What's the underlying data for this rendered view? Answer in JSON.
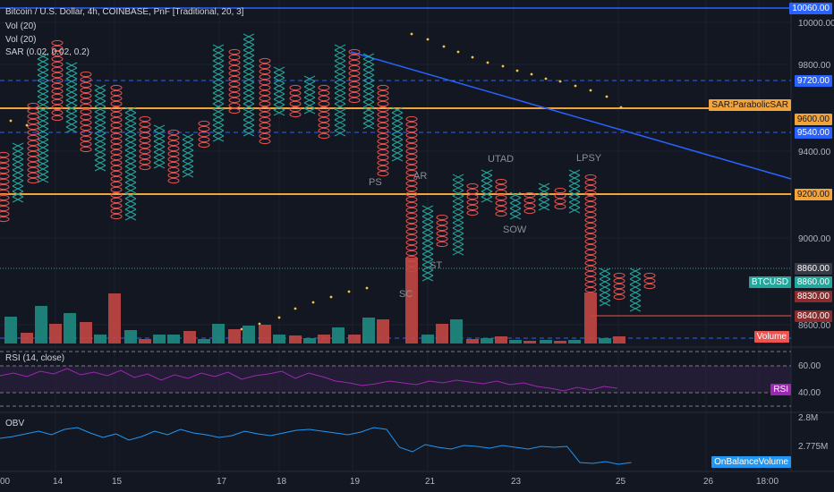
{
  "header": {
    "title": "Bitcoin / U.S. Dollar, 4h, COINBASE, PnF [Traditional, 20, 3]",
    "vol1": "Vol (20)",
    "vol2": "Vol (20)",
    "sar": "SAR (0.02, 0.02, 0.2)"
  },
  "price_axis": {
    "ticks": [
      "10000.00",
      "9800.00",
      "9400.00",
      "9000.00",
      "8600.00"
    ]
  },
  "price_tags": {
    "p10060": "10060.00",
    "p9720": "9720.00",
    "sar_label": "SAR:ParabolicSAR",
    "p9600": "9600.00",
    "p9540": "9540.00",
    "p9200": "9200.00",
    "p8860a": "8860.00",
    "btcusd_label": "BTCUSD",
    "p8860b": "8860.00",
    "p8830": "8830.00",
    "p8640": "8640.00",
    "volume_label": "Volume"
  },
  "annotations": {
    "ps": "PS",
    "ar": "AR",
    "utad": "UTAD",
    "lpsy": "LPSY",
    "sow": "SOW",
    "st": "ST",
    "sc": "SC"
  },
  "rsi": {
    "label": "RSI (14, close)",
    "tick_60": "60.00",
    "tick_40": "40.00",
    "tag": "RSI"
  },
  "obv": {
    "label": "OBV",
    "tick_top": "2.8M",
    "tick_mid": "2.775M",
    "tag": "OnBalanceVolume"
  },
  "time_axis": {
    "ticks": [
      "00",
      "14",
      "15",
      "17",
      "18",
      "19",
      "21",
      "23",
      "25",
      "26",
      "18:00"
    ]
  },
  "colors": {
    "up": "#26a69a",
    "down": "#ef5350",
    "blue_line": "#2962ff",
    "orange_line": "#f0a43b",
    "rsi": "#9c27b0",
    "obv": "#2196f3",
    "sar_dots": "#f5c542"
  }
}
